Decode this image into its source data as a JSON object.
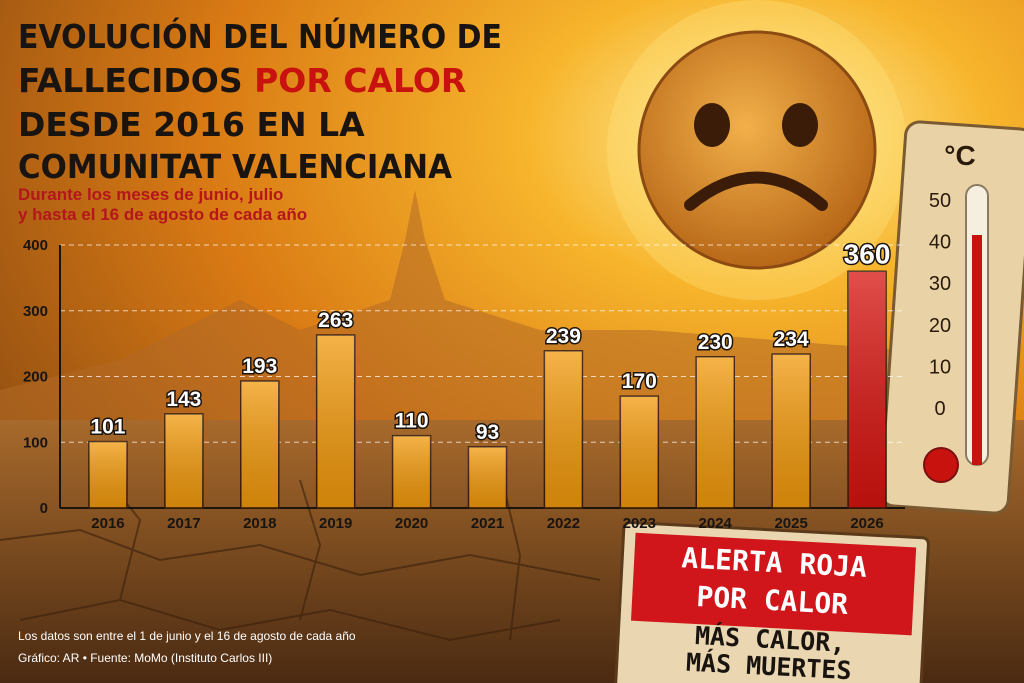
{
  "chart_data": {
    "type": "bar",
    "title_lines": [
      "EVOLUCIÓN DEL NÚMERO DE",
      "FALLECIDOS",
      "POR CALOR",
      "DESDE 2016 EN LA",
      "COMUNITAT VALENCIANA"
    ],
    "subtitle_lines": [
      "Durante los meses de junio, julio",
      "y hasta el 16 de agosto de cada año"
    ],
    "categories": [
      "2016",
      "2017",
      "2018",
      "2019",
      "2020",
      "2021",
      "2022",
      "2023",
      "2024",
      "2025",
      "2026"
    ],
    "values": [
      101,
      143,
      193,
      263,
      110,
      93,
      239,
      170,
      230,
      234,
      360
    ],
    "colors": [
      "#f39a0c",
      "#f39a0c",
      "#f39a0c",
      "#f39a0c",
      "#f39a0c",
      "#f39a0c",
      "#f39a0c",
      "#f39a0c",
      "#f39a0c",
      "#f39a0c",
      "#d8140f"
    ],
    "ylim": [
      0,
      400
    ],
    "yticks": [
      0,
      100,
      200,
      300,
      400
    ],
    "grid": true,
    "notes": [
      "Los datos son entre el 1 de junio y el 16 de agosto de cada año",
      "Gráfico: AR • Fuente: MoMo (Instituto Carlos III)"
    ]
  },
  "decoration": {
    "thermometer": {
      "unit": "°C",
      "labels": [
        "50",
        "40",
        "30",
        "20",
        "10",
        "0"
      ]
    },
    "sign": {
      "top": [
        "ALERTA ROJA",
        "POR CALOR"
      ],
      "bottom": [
        "MÁS CALOR,",
        "MÁS MUERTES"
      ]
    }
  }
}
